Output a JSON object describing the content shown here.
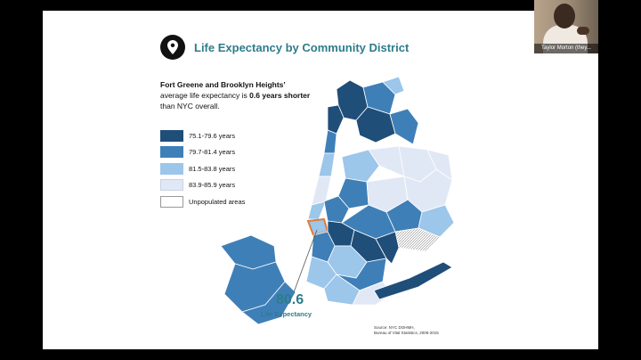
{
  "slide": {
    "title": "Life Expectancy by Community District",
    "lede": {
      "part1": "Fort Greene and Brooklyn Heights’",
      "part2": " average life expectancy is ",
      "part3": "0.6 years shorter",
      "part4": " than NYC overall."
    },
    "legend": [
      {
        "label": "75.1-79.6 years",
        "color": "#1f4e79"
      },
      {
        "label": "79.7-81.4 years",
        "color": "#3f7fb8"
      },
      {
        "label": "81.5-83.8 years",
        "color": "#9cc6ea"
      },
      {
        "label": "83.9-85.9 years",
        "color": "#e1e8f5"
      },
      {
        "label": "Unpopulated areas",
        "color": "#ffffff"
      }
    ],
    "highlight_stat": {
      "value": "80.6",
      "label": "Life Expectancy"
    },
    "source": {
      "line1": "Source: NYC DOHMH,",
      "line2": "Bureau of Vital Statistics, 2006-2015"
    },
    "accent_color": "#2e7c8a",
    "highlight_outline_color": "#e07a3f"
  },
  "video": {
    "participant_name": "Taylor Morton (they..."
  }
}
